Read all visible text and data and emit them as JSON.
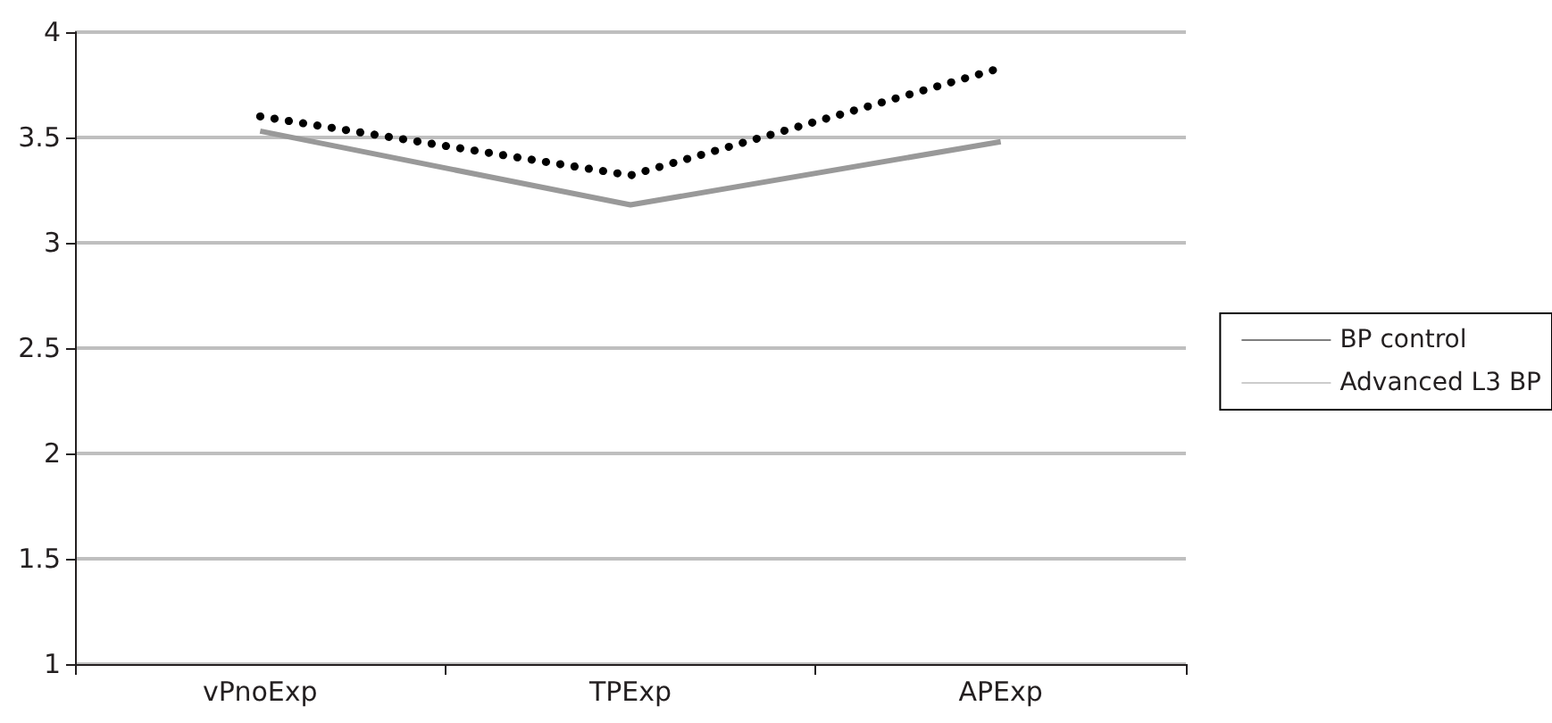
{
  "chart_data": {
    "type": "line",
    "categories": [
      "vPnoExp",
      "TPExp",
      "APExp"
    ],
    "series": [
      {
        "name": "BP control",
        "color": "#000000",
        "values": [
          3.6,
          3.32,
          3.83
        ],
        "line_style": "dotted"
      },
      {
        "name": "Advanced L3 BP",
        "color": "#999999",
        "values": [
          3.53,
          3.18,
          3.48
        ],
        "line_style": "solid"
      }
    ],
    "ylim": [
      1,
      4
    ],
    "yticks": [
      1,
      1.5,
      2,
      2.5,
      3,
      3.5,
      4
    ],
    "grid": "y",
    "legend": "right",
    "marker": "none"
  }
}
